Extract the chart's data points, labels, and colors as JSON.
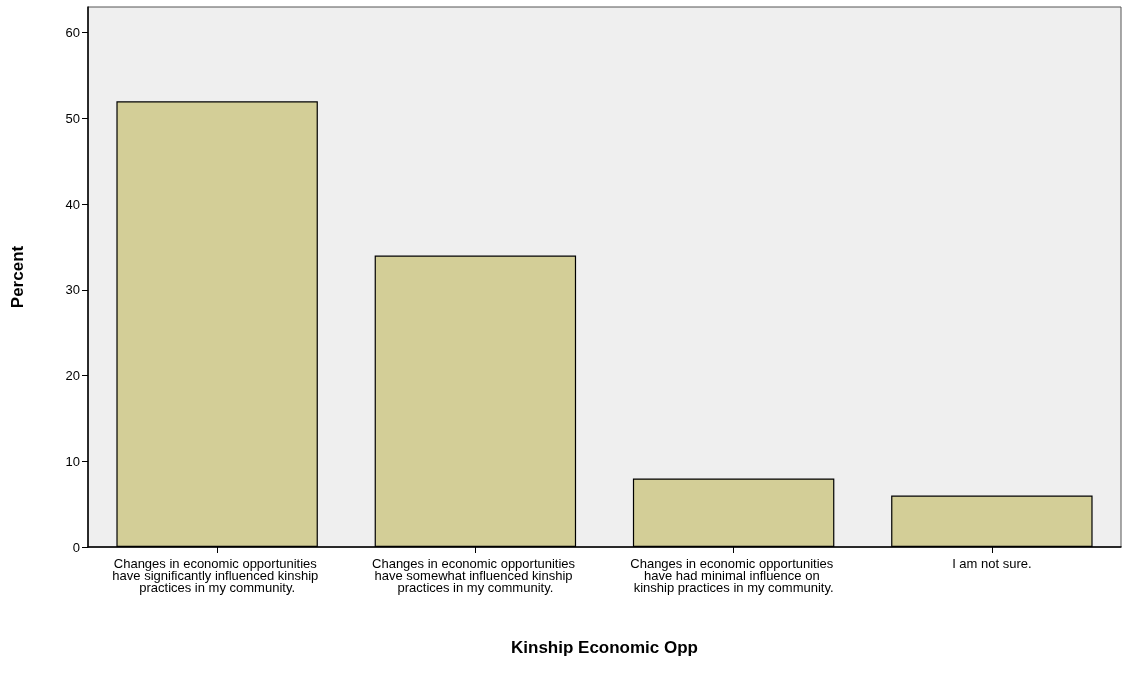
{
  "chart_data": {
    "type": "bar",
    "xlabel": "Kinship Economic Opp",
    "ylabel": "Percent",
    "categories": [
      "Changes in economic opportunities have significantly influenced kinship practices in my community.",
      "Changes in economic opportunities have somewhat influenced kinship practices in my community.",
      "Changes in economic opportunities have had minimal influence on kinship practices in my community.",
      "I am not sure."
    ],
    "values": [
      52,
      34,
      8,
      6
    ],
    "color": "#d3ce97",
    "ylim": [
      0,
      63
    ],
    "yticks": [
      0,
      10,
      20,
      30,
      40,
      50,
      60
    ],
    "grid": false
  }
}
